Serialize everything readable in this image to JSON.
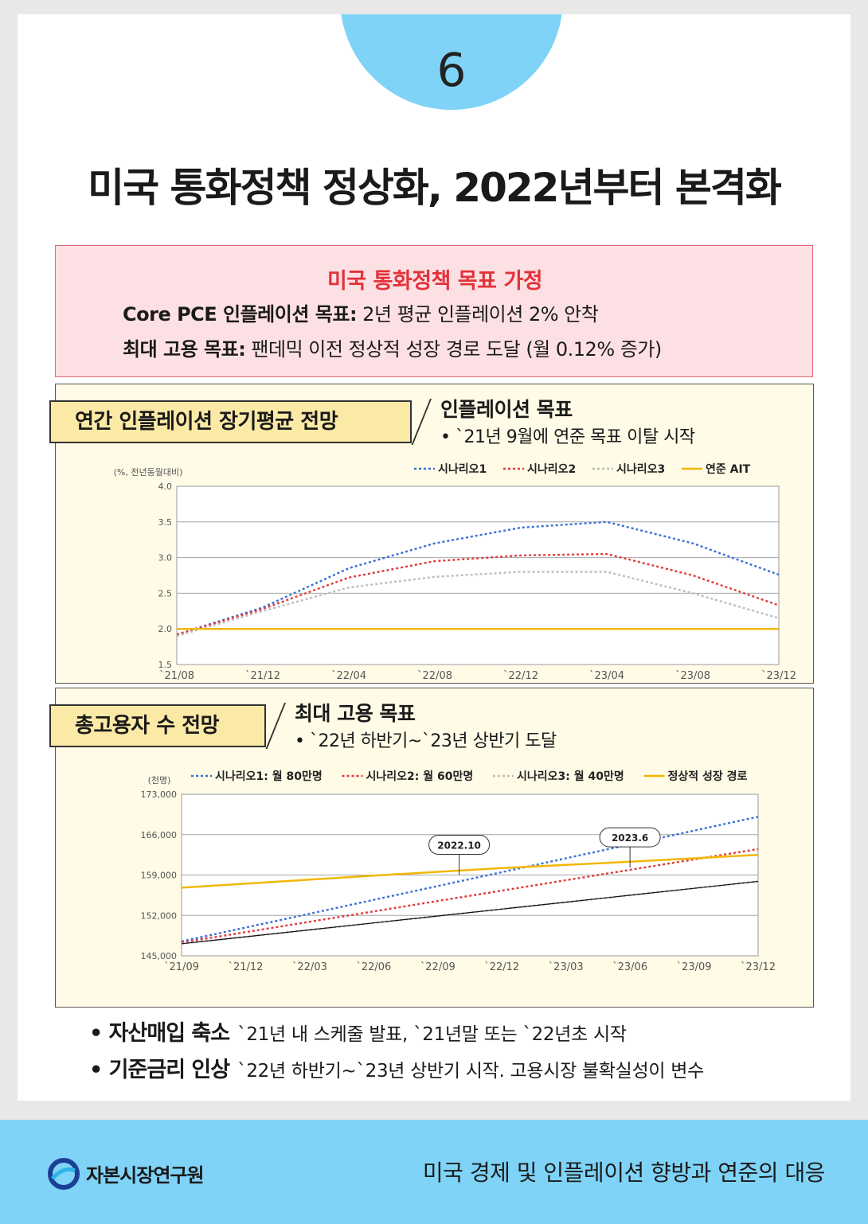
{
  "page_number": "6",
  "title": "미국 통화정책 정상화, 2022년부터 본격화",
  "goal_box": {
    "title": "미국 통화정책 목표 가정",
    "line1_label": "Core PCE 인플레이션 목표:",
    "line1_text": " 2년 평균 인플레이션 2% 안착",
    "line2_label": "최대 고용 목표:",
    "line2_text": " 팬데믹 이전 정상적 성장 경로 도달 (월 0.12% 증가)"
  },
  "inflation_panel": {
    "tag": "연간 인플레이션 장기평균 전망",
    "heading": "인플레이션 목표",
    "sub": "• `21년 9월에 연준 목표 이탈 시작"
  },
  "employment_panel": {
    "tag": "총고용자 수 전망",
    "heading": "최대 고용 목표",
    "sub": "• `22년 하반기~`23년 상반기 도달"
  },
  "chart_data": [
    {
      "type": "line",
      "ylabel": "(%, 전년동월대비)",
      "ylim": [
        1.5,
        4.0
      ],
      "yticks": [
        "4.0",
        "3.5",
        "3.0",
        "2.5",
        "2.0",
        "1.5"
      ],
      "x_tick_labels": [
        "`21/08",
        "`21/12",
        "`22/04",
        "`22/08",
        "`22/12",
        "`23/04",
        "`23/08",
        "`23/12"
      ],
      "x": [
        "2021-08",
        "2021-12",
        "2022-04",
        "2022-08",
        "2022-12",
        "2023-04",
        "2023-08",
        "2023-12"
      ],
      "grid": true,
      "legend": "top-right",
      "series": [
        {
          "name": "시나리오1",
          "color": "#3a6fd8",
          "dash": "dotted",
          "values": [
            1.92,
            2.3,
            2.85,
            3.2,
            3.42,
            3.5,
            3.2,
            2.76
          ]
        },
        {
          "name": "시나리오2",
          "color": "#e03a3a",
          "dash": "dotted",
          "values": [
            1.92,
            2.28,
            2.72,
            2.95,
            3.03,
            3.05,
            2.75,
            2.33
          ]
        },
        {
          "name": "시나리오3",
          "color": "#bdbdbd",
          "dash": "dotted",
          "values": [
            1.9,
            2.25,
            2.58,
            2.73,
            2.8,
            2.8,
            2.5,
            2.15
          ]
        },
        {
          "name": "연준 AIT",
          "color": "#f2b705",
          "dash": "solid",
          "values": [
            2.0,
            2.0,
            2.0,
            2.0,
            2.0,
            2.0,
            2.0,
            2.0
          ]
        }
      ]
    },
    {
      "type": "line",
      "ylabel": "(천명)",
      "ylim": [
        145000,
        173000
      ],
      "yticks": [
        "173,000",
        "166,000",
        "159,000",
        "152,000",
        "145,000"
      ],
      "x_tick_labels": [
        "`21/09",
        "`21/12",
        "`22/03",
        "`22/06",
        "`22/09",
        "`22/12",
        "`23/03",
        "`23/06",
        "`23/09",
        "`23/12"
      ],
      "x": [
        "2021-09",
        "2021-12",
        "2022-03",
        "2022-06",
        "2022-09",
        "2022-12",
        "2023-03",
        "2023-06",
        "2023-09",
        "2023-12"
      ],
      "grid": true,
      "legend": "top",
      "series": [
        {
          "name": "시나리오1: 월 80만명",
          "color": "#3a6fd8",
          "dash": "dotted",
          "values": [
            147500,
            149900,
            152300,
            154700,
            157100,
            159500,
            161900,
            164300,
            166700,
            169100
          ]
        },
        {
          "name": "시나리오2: 월 60만명",
          "color": "#e03a3a",
          "dash": "dotted",
          "values": [
            147300,
            149100,
            150900,
            152700,
            154500,
            156300,
            158100,
            159900,
            161700,
            163500
          ]
        },
        {
          "name": "시나리오3: 월 40만명",
          "color": "#bdbdbd",
          "dash": "dotted",
          "values": [
            147100,
            148300,
            149500,
            150700,
            151900,
            153100,
            154300,
            155500,
            156700,
            157900
          ]
        },
        {
          "name": "정상적 성장 경로",
          "color": "#f2b705",
          "dash": "solid",
          "values": [
            156800,
            157500,
            158200,
            158900,
            159550,
            160200,
            160750,
            161300,
            161900,
            162500
          ]
        },
        {
          "name": "",
          "color": "#111111",
          "dash": "solid",
          "values": [
            147100,
            148300,
            149500,
            150700,
            151900,
            153100,
            154300,
            155500,
            156700,
            157900
          ]
        }
      ],
      "annotations": [
        {
          "text": "2022.10",
          "x": "2022-10",
          "y": 159000
        },
        {
          "text": "2023.6",
          "x": "2023-06",
          "y": 160300
        }
      ]
    }
  ],
  "bullets": [
    {
      "key": "자산매입 축소",
      "text": "`21년 내 스케줄 발표, `21년말 또는 `22년초 시작"
    },
    {
      "key": "기준금리 인상",
      "text": "`22년 하반기~`23년 상반기 시작. 고용시장 불확실성이 변수"
    }
  ],
  "footer": {
    "org": "자본시장연구원",
    "title": "미국 경제 및 인플레이션 향방과 연준의 대응"
  },
  "colors": {
    "accent_blue": "#7fd3f7",
    "goal_red": "#e2323a",
    "panel_bg": "#fffbe6",
    "tag_bg": "#fbe9a6"
  }
}
